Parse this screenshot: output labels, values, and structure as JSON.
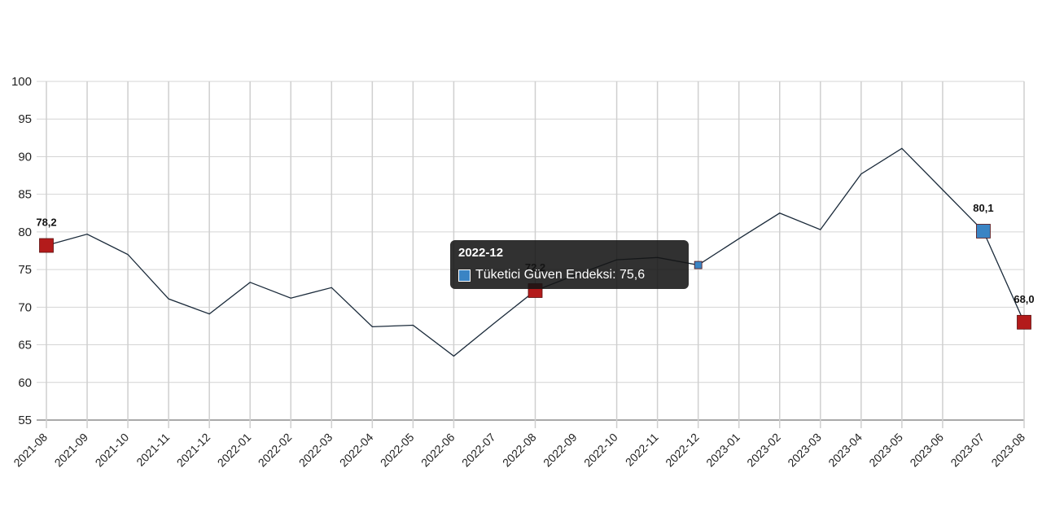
{
  "chart_data": {
    "type": "line",
    "title": "",
    "xlabel": "",
    "ylabel": "",
    "ylim": [
      55,
      100
    ],
    "yticks": [
      100,
      95,
      90,
      85,
      80,
      75,
      70,
      65,
      60,
      55
    ],
    "grid": true,
    "legend": "none",
    "categories": [
      "2021-08",
      "2021-09",
      "2021-10",
      "2021-11",
      "2021-12",
      "2022-01",
      "2022-02",
      "2022-03",
      "2022-04",
      "2022-05",
      "2022-06",
      "2022-07",
      "2022-08",
      "2022-09",
      "2022-10",
      "2022-11",
      "2022-12",
      "2023-01",
      "2023-02",
      "2023-03",
      "2023-04",
      "2023-05",
      "2023-06",
      "2023-07",
      "2023-08"
    ],
    "series": [
      {
        "name": "Tüketici Güven Endeksi",
        "color": "#1a2a3a",
        "values": [
          78.2,
          79.7,
          77.0,
          71.1,
          69.1,
          73.3,
          71.2,
          72.6,
          67.4,
          67.6,
          63.5,
          67.9,
          72.2,
          74.3,
          76.3,
          76.6,
          75.6,
          79.1,
          82.5,
          80.3,
          87.7,
          91.1,
          85.6,
          80.1,
          68.0
        ]
      }
    ],
    "annotations": [
      {
        "category": "2021-08",
        "label": "78,2",
        "marker_color": "#b31b1b"
      },
      {
        "category": "2022-08",
        "label": "72,2",
        "marker_color": "#b31b1b"
      },
      {
        "category": "2023-07",
        "label": "80,1",
        "marker_color": "#3a84c4"
      },
      {
        "category": "2023-08",
        "label": "68,0",
        "marker_color": "#b31b1b"
      }
    ],
    "hover_point": {
      "category": "2022-12",
      "marker_color": "#3a84c4"
    },
    "missing_gridlines": [
      "2022-07",
      "2022-09",
      "2023-07"
    ]
  },
  "tooltip": {
    "title": "2022-12",
    "series_label": "Tüketici Güven Endeksi: 75,6",
    "swatch_color": "#3a84c4"
  }
}
